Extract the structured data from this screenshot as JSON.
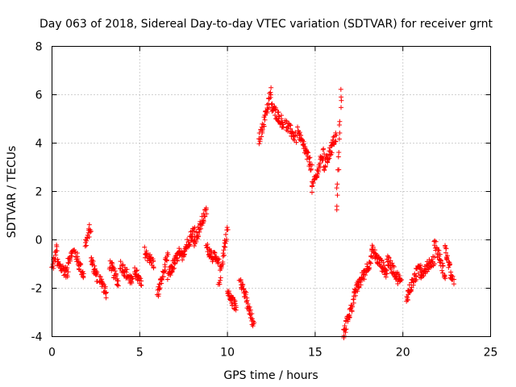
{
  "chart_data": {
    "type": "scatter",
    "title": "Day 063 of 2018, Sidereal Day-to-day VTEC variation (SDTVAR) for receiver grnt",
    "xlabel": "GPS time / hours",
    "ylabel": "SDTVAR / TECUs",
    "xlim": [
      0,
      25
    ],
    "ylim": [
      -4,
      8
    ],
    "xticks": [
      0,
      5,
      10,
      15,
      20,
      25
    ],
    "yticks": [
      -4,
      -2,
      0,
      2,
      4,
      6,
      8
    ],
    "xtick_labels": [
      "0",
      "5",
      "10",
      "15",
      "20",
      "25"
    ],
    "ytick_labels": [
      "-4",
      "-2",
      "0",
      "2",
      "4",
      "6",
      "8"
    ],
    "grid": true,
    "marker": "plus",
    "color": "#ff0000",
    "series": [
      {
        "name": "SDTVAR",
        "segments": [
          {
            "t": [
              0.0,
              0.3
            ],
            "v": [
              -1.2,
              -0.3
            ]
          },
          {
            "t": [
              0.3,
              0.9
            ],
            "v": [
              -1.0,
              -1.4
            ]
          },
          {
            "t": [
              0.9,
              1.2
            ],
            "v": [
              -0.8,
              -0.5
            ]
          },
          {
            "t": [
              1.3,
              1.8
            ],
            "v": [
              -0.5,
              -1.5
            ]
          },
          {
            "t": [
              1.9,
              2.2
            ],
            "v": [
              -0.2,
              0.5
            ]
          },
          {
            "t": [
              2.2,
              2.6
            ],
            "v": [
              -0.8,
              -1.6
            ]
          },
          {
            "t": [
              2.7,
              3.1
            ],
            "v": [
              -1.5,
              -2.3
            ]
          },
          {
            "t": [
              3.3,
              3.8
            ],
            "v": [
              -1.0,
              -1.8
            ]
          },
          {
            "t": [
              3.9,
              4.6
            ],
            "v": [
              -1.0,
              -1.8
            ]
          },
          {
            "t": [
              4.7,
              5.1
            ],
            "v": [
              -1.2,
              -1.9
            ]
          },
          {
            "t": [
              5.3,
              5.8
            ],
            "v": [
              -0.5,
              -1.0
            ]
          },
          {
            "t": [
              6.0,
              6.6
            ],
            "v": [
              -2.3,
              -0.7
            ]
          },
          {
            "t": [
              6.6,
              7.3
            ],
            "v": [
              -1.5,
              -0.5
            ]
          },
          {
            "t": [
              7.3,
              8.1
            ],
            "v": [
              -0.8,
              0.4
            ]
          },
          {
            "t": [
              8.1,
              8.8
            ],
            "v": [
              -0.1,
              1.2
            ]
          },
          {
            "t": [
              8.8,
              9.5
            ],
            "v": [
              -0.3,
              -1.0
            ]
          },
          {
            "t": [
              9.5,
              10.0
            ],
            "v": [
              -1.8,
              0.5
            ]
          },
          {
            "t": [
              10.0,
              10.5
            ],
            "v": [
              -2.2,
              -2.8
            ]
          },
          {
            "t": [
              10.7,
              11.5
            ],
            "v": [
              -1.5,
              -3.6
            ]
          },
          {
            "t": [
              11.8,
              12.5
            ],
            "v": [
              4.1,
              6.1
            ]
          },
          {
            "t": [
              12.5,
              13.2
            ],
            "v": [
              5.5,
              4.8
            ]
          },
          {
            "t": [
              13.3,
              13.9
            ],
            "v": [
              4.8,
              4.2
            ]
          },
          {
            "t": [
              14.0,
              14.8
            ],
            "v": [
              4.5,
              3.0
            ]
          },
          {
            "t": [
              14.8,
              15.5
            ],
            "v": [
              2.1,
              3.6
            ]
          },
          {
            "t": [
              15.5,
              16.2
            ],
            "v": [
              3.0,
              4.3
            ]
          },
          {
            "t": [
              16.2,
              16.5
            ],
            "v": [
              1.1,
              6.3
            ]
          },
          {
            "t": [
              16.6,
              17.3
            ],
            "v": [
              -3.9,
              -2.2
            ]
          },
          {
            "t": [
              17.3,
              18.2
            ],
            "v": [
              -2.1,
              -0.8
            ]
          },
          {
            "t": [
              18.2,
              19.1
            ],
            "v": [
              -0.4,
              -1.4
            ]
          },
          {
            "t": [
              19.1,
              19.9
            ],
            "v": [
              -0.8,
              -1.8
            ]
          },
          {
            "t": [
              20.2,
              21.0
            ],
            "v": [
              -2.4,
              -1.0
            ]
          },
          {
            "t": [
              21.0,
              21.8
            ],
            "v": [
              -1.4,
              -0.8
            ]
          },
          {
            "t": [
              21.8,
              22.4
            ],
            "v": [
              -0.1,
              -1.5
            ]
          },
          {
            "t": [
              22.4,
              22.9
            ],
            "v": [
              -0.3,
              -1.9
            ]
          }
        ]
      }
    ]
  }
}
